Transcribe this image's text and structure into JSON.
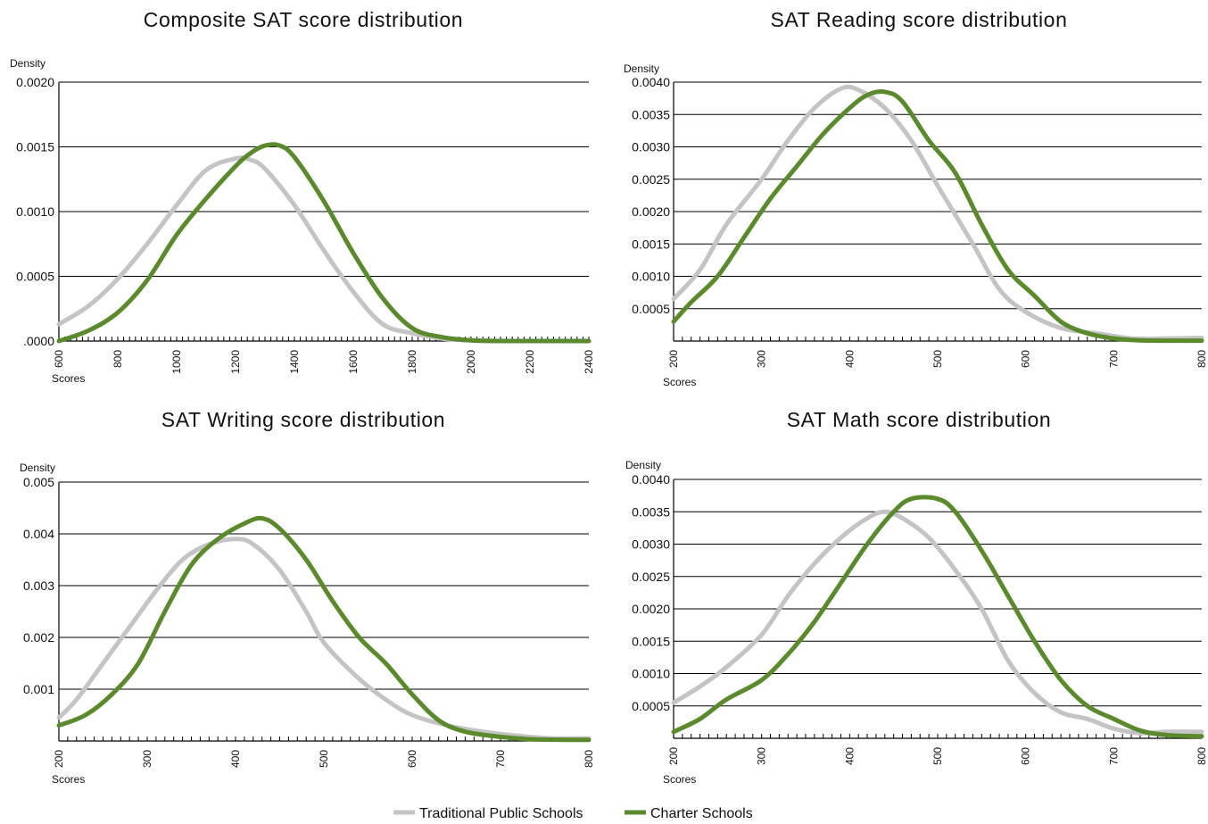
{
  "colors": {
    "traditional": "#c4c4c4",
    "charter": "#5a8a2c",
    "grid": "#000000"
  },
  "legend": {
    "items": [
      {
        "label": "Traditional Public Schools",
        "color": "#c4c4c4"
      },
      {
        "label": "Charter Schools",
        "color": "#5a8a2c"
      }
    ]
  },
  "chart_data": [
    {
      "type": "line",
      "title": "Composite SAT score distribution",
      "xlabel": "Scores",
      "ylabel": "Density",
      "xlim": [
        600,
        2400
      ],
      "ylim": [
        0,
        0.002
      ],
      "xticks": [
        600,
        800,
        1000,
        1200,
        1400,
        1600,
        1800,
        2000,
        2200,
        2400
      ],
      "xtick_labels": [
        "600",
        "800",
        "1000",
        "1200",
        "1400",
        "1600",
        "1800",
        "2000",
        "2200",
        "2400"
      ],
      "yticks": [
        0,
        0.0005,
        0.001,
        0.0015,
        0.002
      ],
      "ytick_labels": [
        ".0000",
        "0.0005",
        "0.0010",
        "0.0015",
        "0.0020"
      ],
      "minor_tick_step": 20,
      "grid": true,
      "series": [
        {
          "name": "Traditional Public Schools",
          "color": "#c4c4c4",
          "x": [
            600,
            700,
            800,
            900,
            1000,
            1100,
            1200,
            1250,
            1300,
            1400,
            1500,
            1600,
            1700,
            1800,
            1900,
            2000,
            2100,
            2200,
            2300,
            2400
          ],
          "y": [
            0.00013,
            0.00027,
            0.00048,
            0.00075,
            0.00105,
            0.00132,
            0.00141,
            0.0014,
            0.00133,
            0.00105,
            0.0007,
            0.00038,
            0.00013,
            6e-05,
            2e-05,
            5e-06,
            0,
            0,
            0,
            0
          ]
        },
        {
          "name": "Charter Schools",
          "color": "#5a8a2c",
          "x": [
            600,
            700,
            800,
            900,
            1000,
            1100,
            1200,
            1250,
            1300,
            1350,
            1400,
            1500,
            1600,
            1700,
            1800,
            1900,
            2000,
            2100,
            2200,
            2300,
            2400
          ],
          "y": [
            0.0,
            8e-05,
            0.00022,
            0.00047,
            0.00082,
            0.0011,
            0.00135,
            0.00145,
            0.00151,
            0.00151,
            0.00142,
            0.00108,
            0.00068,
            0.00033,
            0.0001,
            3e-05,
            5e-06,
            0,
            0,
            0,
            0
          ]
        }
      ]
    },
    {
      "type": "line",
      "title": "SAT Reading score distribution",
      "xlabel": "Scores",
      "ylabel": "Density",
      "xlim": [
        200,
        800
      ],
      "ylim": [
        0,
        0.004
      ],
      "xticks": [
        200,
        300,
        400,
        500,
        600,
        700,
        800
      ],
      "xtick_labels": [
        "200",
        "300",
        "400",
        "500",
        "600",
        "700",
        "800"
      ],
      "yticks": [
        0.0005,
        0.001,
        0.0015,
        0.002,
        0.0025,
        0.003,
        0.0035,
        0.004
      ],
      "ytick_labels": [
        "0.0005",
        "0.0010",
        "0.0015",
        "0.0020",
        "0.0025",
        "0.0030",
        "0.0035",
        "0.0040"
      ],
      "minor_tick_step": 10,
      "grid": true,
      "series": [
        {
          "name": "Traditional Public Schools",
          "color": "#c4c4c4",
          "x": [
            200,
            230,
            260,
            300,
            330,
            360,
            390,
            410,
            440,
            470,
            500,
            540,
            570,
            600,
            640,
            680,
            720,
            760,
            800
          ],
          "y": [
            0.00065,
            0.0011,
            0.0018,
            0.0025,
            0.0031,
            0.0036,
            0.0039,
            0.00388,
            0.0036,
            0.0031,
            0.0024,
            0.0015,
            0.0008,
            0.00045,
            0.0002,
            0.00012,
            4e-05,
            4e-05,
            5e-05
          ]
        },
        {
          "name": "Charter Schools",
          "color": "#5a8a2c",
          "x": [
            200,
            220,
            250,
            280,
            310,
            340,
            370,
            400,
            420,
            440,
            460,
            490,
            520,
            550,
            580,
            610,
            640,
            670,
            700,
            730,
            760,
            800
          ],
          "y": [
            0.0003,
            0.0006,
            0.001,
            0.0016,
            0.0022,
            0.0027,
            0.0032,
            0.0036,
            0.0038,
            0.00385,
            0.0037,
            0.0031,
            0.0026,
            0.0018,
            0.0011,
            0.0007,
            0.0003,
            0.00012,
            4e-05,
            1e-05,
            5e-06,
            5e-06
          ]
        }
      ]
    },
    {
      "type": "line",
      "title": "SAT Writing score distribution",
      "xlabel": "Scores",
      "ylabel": "Density",
      "xlim": [
        200,
        800
      ],
      "ylim": [
        0,
        0.005
      ],
      "xticks": [
        200,
        300,
        400,
        500,
        600,
        700,
        800
      ],
      "xtick_labels": [
        "200",
        "300",
        "400",
        "500",
        "600",
        "700",
        "800"
      ],
      "yticks": [
        0.001,
        0.002,
        0.003,
        0.004,
        0.005
      ],
      "ytick_labels": [
        "0.001",
        "0.002",
        "0.003",
        "0.004",
        "0.005"
      ],
      "minor_tick_step": 10,
      "grid": true,
      "series": [
        {
          "name": "Traditional Public Schools",
          "color": "#c4c4c4",
          "x": [
            200,
            220,
            250,
            280,
            310,
            340,
            370,
            400,
            420,
            450,
            480,
            500,
            540,
            570,
            600,
            640,
            680,
            720,
            760,
            800
          ],
          "y": [
            0.00045,
            0.0008,
            0.0015,
            0.0022,
            0.0029,
            0.0035,
            0.0038,
            0.0039,
            0.0038,
            0.0033,
            0.0025,
            0.0019,
            0.0012,
            0.0008,
            0.0005,
            0.0003,
            0.00018,
            0.0001,
            5e-05,
            5e-05
          ]
        },
        {
          "name": "Charter Schools",
          "color": "#5a8a2c",
          "x": [
            200,
            230,
            260,
            290,
            320,
            350,
            380,
            410,
            430,
            450,
            480,
            510,
            540,
            570,
            600,
            630,
            660,
            700,
            740,
            800
          ],
          "y": [
            0.0003,
            0.0005,
            0.0009,
            0.0015,
            0.0025,
            0.0034,
            0.0039,
            0.0042,
            0.0043,
            0.0041,
            0.0035,
            0.0027,
            0.002,
            0.0015,
            0.0009,
            0.0004,
            0.00018,
            8e-05,
            3e-05,
            2e-05
          ]
        }
      ]
    },
    {
      "type": "line",
      "title": "SAT Math score distribution",
      "xlabel": "Scores",
      "ylabel": "Density",
      "xlim": [
        200,
        800
      ],
      "ylim": [
        0,
        0.004
      ],
      "xticks": [
        200,
        300,
        400,
        500,
        600,
        700,
        800
      ],
      "xtick_labels": [
        "200",
        "300",
        "400",
        "500",
        "600",
        "700",
        "800"
      ],
      "yticks": [
        0.0005,
        0.001,
        0.0015,
        0.002,
        0.0025,
        0.003,
        0.0035,
        0.004
      ],
      "ytick_labels": [
        "0.0005",
        "0.0010",
        "0.0015",
        "0.0020",
        "0.0025",
        "0.0030",
        "0.0035",
        "0.0040"
      ],
      "minor_tick_step": 10,
      "grid": true,
      "series": [
        {
          "name": "Traditional Public Schools",
          "color": "#c4c4c4",
          "x": [
            200,
            230,
            260,
            300,
            330,
            360,
            390,
            420,
            440,
            460,
            490,
            520,
            550,
            580,
            610,
            640,
            670,
            700,
            730,
            760,
            800
          ],
          "y": [
            0.00055,
            0.0008,
            0.0011,
            0.0016,
            0.0022,
            0.0027,
            0.0031,
            0.0034,
            0.0035,
            0.0034,
            0.0031,
            0.0026,
            0.002,
            0.0012,
            0.0007,
            0.0004,
            0.0003,
            0.00015,
            8e-05,
            0.0001,
            0.0001
          ]
        },
        {
          "name": "Charter Schools",
          "color": "#5a8a2c",
          "x": [
            200,
            230,
            260,
            300,
            330,
            360,
            390,
            420,
            450,
            470,
            500,
            520,
            550,
            580,
            610,
            640,
            670,
            700,
            730,
            760,
            800
          ],
          "y": [
            0.0001,
            0.0003,
            0.0006,
            0.0009,
            0.0013,
            0.0018,
            0.0024,
            0.003,
            0.0035,
            0.0037,
            0.0037,
            0.0035,
            0.0029,
            0.0022,
            0.0015,
            0.0009,
            0.0005,
            0.0003,
            0.00012,
            5e-05,
            3e-05
          ]
        }
      ]
    }
  ]
}
